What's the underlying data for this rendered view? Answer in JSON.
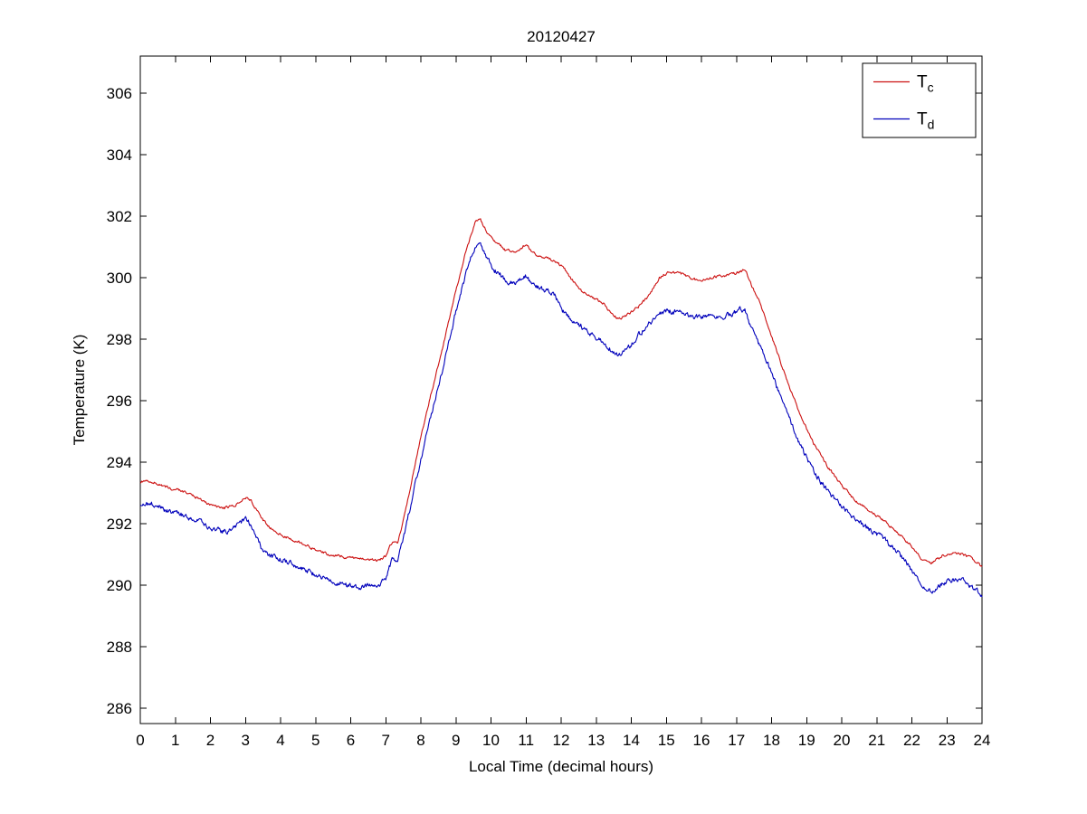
{
  "chart_data": {
    "type": "line",
    "title": "20120427",
    "xlabel": "Local Time (decimal hours)",
    "ylabel": "Temperature (K)",
    "xlim": [
      0,
      24
    ],
    "ylim": [
      285.5,
      307.2
    ],
    "xticks": [
      0,
      1,
      2,
      3,
      4,
      5,
      6,
      7,
      8,
      9,
      10,
      11,
      12,
      13,
      14,
      15,
      16,
      17,
      18,
      19,
      20,
      21,
      22,
      23,
      24
    ],
    "yticks": [
      286,
      288,
      290,
      292,
      294,
      296,
      298,
      300,
      302,
      304,
      306
    ],
    "grid": false,
    "legend_position": "top-right",
    "background": "#ffffff",
    "axis_color": "#000000",
    "series": [
      {
        "name": "Tc",
        "label_main": "T",
        "label_sub": "c",
        "color": "#cc1111",
        "noise": 0.05,
        "points": [
          [
            0,
            293.35
          ],
          [
            0.3,
            293.4
          ],
          [
            0.7,
            293.2
          ],
          [
            1.2,
            293.05
          ],
          [
            1.6,
            292.85
          ],
          [
            2.0,
            292.6
          ],
          [
            2.4,
            292.5
          ],
          [
            2.7,
            292.6
          ],
          [
            3.0,
            292.85
          ],
          [
            3.15,
            292.75
          ],
          [
            3.5,
            292.1
          ],
          [
            3.8,
            291.75
          ],
          [
            4.2,
            291.55
          ],
          [
            4.6,
            291.35
          ],
          [
            5.0,
            291.15
          ],
          [
            5.4,
            291.0
          ],
          [
            5.9,
            290.9
          ],
          [
            6.4,
            290.85
          ],
          [
            6.8,
            290.8
          ],
          [
            7.0,
            290.95
          ],
          [
            7.2,
            291.45
          ],
          [
            7.35,
            291.4
          ],
          [
            7.6,
            292.6
          ],
          [
            7.9,
            294.3
          ],
          [
            8.2,
            295.8
          ],
          [
            8.6,
            297.6
          ],
          [
            9.0,
            299.6
          ],
          [
            9.3,
            300.9
          ],
          [
            9.55,
            301.8
          ],
          [
            9.7,
            301.9
          ],
          [
            9.85,
            301.55
          ],
          [
            10.1,
            301.2
          ],
          [
            10.4,
            300.9
          ],
          [
            10.7,
            300.8
          ],
          [
            11.0,
            301.1
          ],
          [
            11.2,
            300.8
          ],
          [
            11.5,
            300.65
          ],
          [
            11.8,
            300.55
          ],
          [
            12.05,
            300.35
          ],
          [
            12.3,
            299.95
          ],
          [
            12.6,
            299.55
          ],
          [
            12.9,
            299.35
          ],
          [
            13.2,
            299.15
          ],
          [
            13.45,
            298.8
          ],
          [
            13.65,
            298.65
          ],
          [
            13.9,
            298.8
          ],
          [
            14.2,
            299.05
          ],
          [
            14.5,
            299.4
          ],
          [
            14.8,
            300.0
          ],
          [
            15.1,
            300.2
          ],
          [
            15.4,
            300.15
          ],
          [
            15.7,
            299.95
          ],
          [
            16.0,
            299.9
          ],
          [
            16.3,
            300.0
          ],
          [
            16.6,
            300.05
          ],
          [
            16.9,
            300.1
          ],
          [
            17.1,
            300.2
          ],
          [
            17.25,
            300.25
          ],
          [
            17.45,
            299.7
          ],
          [
            17.7,
            299.1
          ],
          [
            18.0,
            298.1
          ],
          [
            18.4,
            296.8
          ],
          [
            18.8,
            295.6
          ],
          [
            19.2,
            294.6
          ],
          [
            19.6,
            293.85
          ],
          [
            20.0,
            293.25
          ],
          [
            20.4,
            292.75
          ],
          [
            20.8,
            292.4
          ],
          [
            21.2,
            292.1
          ],
          [
            21.6,
            291.7
          ],
          [
            22.0,
            291.25
          ],
          [
            22.3,
            290.8
          ],
          [
            22.55,
            290.7
          ],
          [
            22.85,
            290.95
          ],
          [
            23.15,
            291.05
          ],
          [
            23.45,
            291.0
          ],
          [
            23.7,
            290.9
          ],
          [
            24,
            290.6
          ]
        ]
      },
      {
        "name": "Td",
        "label_main": "T",
        "label_sub": "d",
        "color": "#0000bb",
        "noise": 0.1,
        "points": [
          [
            0,
            292.6
          ],
          [
            0.3,
            292.65
          ],
          [
            0.7,
            292.45
          ],
          [
            1.2,
            292.3
          ],
          [
            1.6,
            292.1
          ],
          [
            2.0,
            291.85
          ],
          [
            2.4,
            291.75
          ],
          [
            2.7,
            291.85
          ],
          [
            3.0,
            292.2
          ],
          [
            3.15,
            291.95
          ],
          [
            3.5,
            291.1
          ],
          [
            3.8,
            290.9
          ],
          [
            4.2,
            290.75
          ],
          [
            4.6,
            290.55
          ],
          [
            5.0,
            290.35
          ],
          [
            5.4,
            290.15
          ],
          [
            5.9,
            290.0
          ],
          [
            6.4,
            289.95
          ],
          [
            6.8,
            290.0
          ],
          [
            7.0,
            290.25
          ],
          [
            7.2,
            290.9
          ],
          [
            7.35,
            290.85
          ],
          [
            7.6,
            292.0
          ],
          [
            7.9,
            293.6
          ],
          [
            8.2,
            295.1
          ],
          [
            8.6,
            296.9
          ],
          [
            9.0,
            298.9
          ],
          [
            9.3,
            300.2
          ],
          [
            9.55,
            301.05
          ],
          [
            9.7,
            301.1
          ],
          [
            9.85,
            300.7
          ],
          [
            10.1,
            300.25
          ],
          [
            10.4,
            299.95
          ],
          [
            10.7,
            299.8
          ],
          [
            11.0,
            300.05
          ],
          [
            11.2,
            299.75
          ],
          [
            11.5,
            299.6
          ],
          [
            11.8,
            299.45
          ],
          [
            12.05,
            298.9
          ],
          [
            12.3,
            298.6
          ],
          [
            12.6,
            298.4
          ],
          [
            12.9,
            298.15
          ],
          [
            13.2,
            297.9
          ],
          [
            13.45,
            297.6
          ],
          [
            13.65,
            297.45
          ],
          [
            13.9,
            297.7
          ],
          [
            14.2,
            298.1
          ],
          [
            14.5,
            298.5
          ],
          [
            14.8,
            298.8
          ],
          [
            15.1,
            298.9
          ],
          [
            15.4,
            298.85
          ],
          [
            15.7,
            298.7
          ],
          [
            16.0,
            298.7
          ],
          [
            16.3,
            298.8
          ],
          [
            16.6,
            298.75
          ],
          [
            16.9,
            298.8
          ],
          [
            17.1,
            299.0
          ],
          [
            17.25,
            298.9
          ],
          [
            17.45,
            298.3
          ],
          [
            17.7,
            297.7
          ],
          [
            18.0,
            296.9
          ],
          [
            18.4,
            295.7
          ],
          [
            18.8,
            294.6
          ],
          [
            19.2,
            293.7
          ],
          [
            19.6,
            293.05
          ],
          [
            20.0,
            292.55
          ],
          [
            20.4,
            292.1
          ],
          [
            20.8,
            291.8
          ],
          [
            21.2,
            291.5
          ],
          [
            21.6,
            291.1
          ],
          [
            22.0,
            290.5
          ],
          [
            22.3,
            289.95
          ],
          [
            22.55,
            289.8
          ],
          [
            22.85,
            290.05
          ],
          [
            23.15,
            290.2
          ],
          [
            23.45,
            290.15
          ],
          [
            23.7,
            289.95
          ],
          [
            24,
            289.7
          ]
        ]
      }
    ]
  }
}
